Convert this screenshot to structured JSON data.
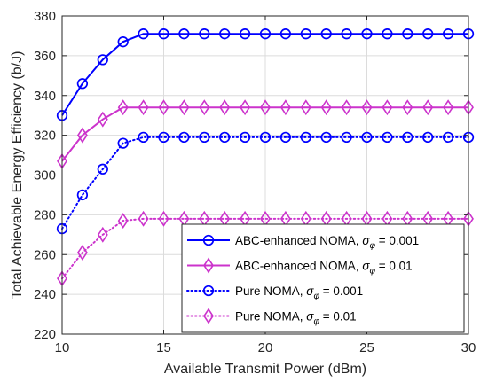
{
  "chart_data": {
    "type": "line",
    "xlabel": "Available Transmit Power (dBm)",
    "ylabel": "Total Achievable Energy Efficiency (b/J)",
    "xlim": [
      10,
      30
    ],
    "ylim": [
      220,
      380
    ],
    "xticks": [
      10,
      15,
      20,
      25,
      30
    ],
    "yticks": [
      220,
      240,
      260,
      280,
      300,
      320,
      340,
      360,
      380
    ],
    "grid": true,
    "legend_position": "bottom-right",
    "x": [
      10,
      11,
      12,
      13,
      14,
      15,
      16,
      17,
      18,
      19,
      20,
      21,
      22,
      23,
      24,
      25,
      26,
      27,
      28,
      29,
      30
    ],
    "series": [
      {
        "name": "ABC-enhanced NOMA",
        "sigma_label": "= 0.001",
        "color": "#0000ff",
        "line_style": "solid",
        "marker": "circle",
        "values": [
          330,
          346,
          358,
          367,
          371,
          371,
          371,
          371,
          371,
          371,
          371,
          371,
          371,
          371,
          371,
          371,
          371,
          371,
          371,
          371,
          371
        ]
      },
      {
        "name": "ABC-enhanced NOMA",
        "sigma_label": "= 0.01",
        "color": "#cc33cc",
        "line_style": "solid",
        "marker": "diamond",
        "values": [
          307,
          320,
          328,
          334,
          334,
          334,
          334,
          334,
          334,
          334,
          334,
          334,
          334,
          334,
          334,
          334,
          334,
          334,
          334,
          334,
          334
        ]
      },
      {
        "name": "Pure NOMA",
        "sigma_label": "= 0.001",
        "color": "#0000ff",
        "line_style": "dotted",
        "marker": "circle",
        "values": [
          273,
          290,
          303,
          316,
          319,
          319,
          319,
          319,
          319,
          319,
          319,
          319,
          319,
          319,
          319,
          319,
          319,
          319,
          319,
          319,
          319
        ]
      },
      {
        "name": "Pure NOMA",
        "sigma_label": "= 0.01",
        "color": "#cc33cc",
        "line_style": "dotted",
        "marker": "diamond",
        "values": [
          248,
          261,
          270,
          277,
          278,
          278,
          278,
          278,
          278,
          278,
          278,
          278,
          278,
          278,
          278,
          278,
          278,
          278,
          278,
          278,
          278
        ]
      }
    ]
  }
}
